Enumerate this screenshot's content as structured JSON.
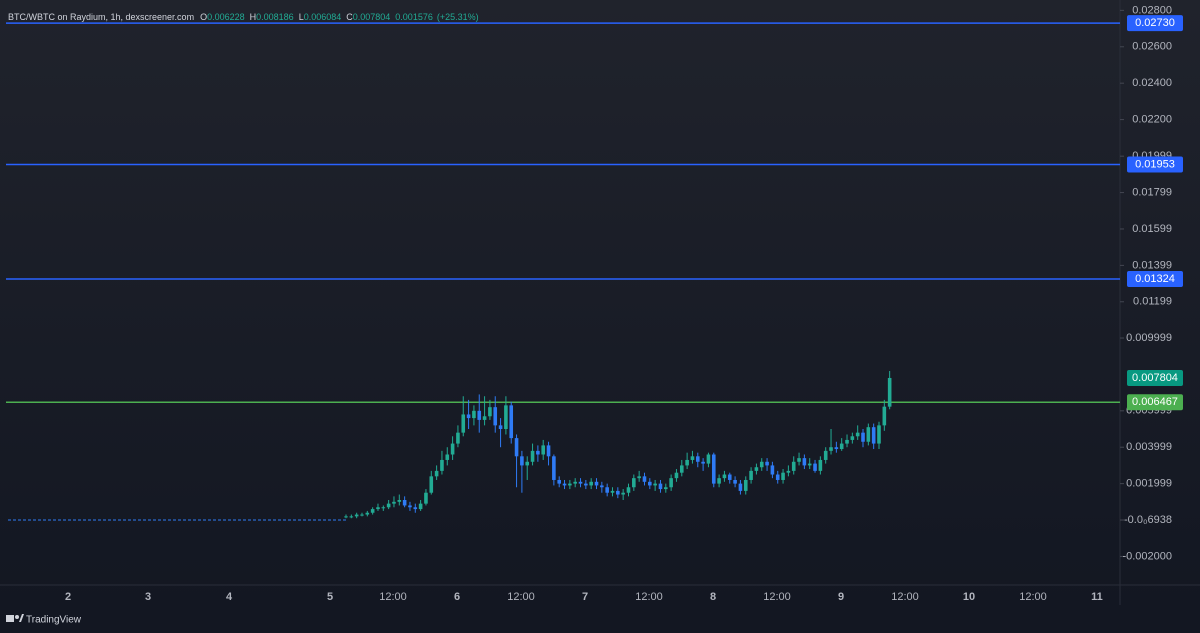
{
  "header": {
    "symbol": "BTC/WBTC on Raydium, 1h, dexscreener.com",
    "open_label": "O",
    "high_label": "H",
    "low_label": "L",
    "close_label": "C",
    "change": 0.001576,
    "change_percent": "(+25.31%)"
  },
  "footer": {
    "brand": "TradingView"
  },
  "chart_data": {
    "type": "candlestick",
    "open": [
      0.0002,
      0.0002,
      0.0002,
      0.0003,
      0.0003,
      0.0004,
      0.0006,
      0.0007,
      0.0007,
      0.0009,
      0.001,
      0.0011,
      0.0008,
      0.0007,
      0.0006,
      0.0009,
      0.0015,
      0.0024,
      0.0027,
      0.0033,
      0.0036,
      0.0042,
      0.0048,
      0.0058,
      0.0056,
      0.006,
      0.0055,
      0.0057,
      0.0062,
      0.0052,
      0.005,
      0.0063,
      0.0045,
      0.0035,
      0.003,
      0.0032,
      0.0038,
      0.0036,
      0.0041,
      0.0035,
      0.0022,
      0.002,
      0.0019,
      0.002,
      0.0021,
      0.002,
      0.0019,
      0.0021,
      0.0019,
      0.0018,
      0.0015,
      0.0016,
      0.0014,
      0.0015,
      0.0018,
      0.0023,
      0.0024,
      0.0021,
      0.0019,
      0.002,
      0.0017,
      0.0018,
      0.0023,
      0.0026,
      0.003,
      0.0033,
      0.0035,
      0.0032,
      0.0031,
      0.0036,
      0.002,
      0.0023,
      0.0025,
      0.0022,
      0.002,
      0.0016,
      0.0022,
      0.0027,
      0.0029,
      0.0032,
      0.003,
      0.0025,
      0.0022,
      0.0026,
      0.0027,
      0.0032,
      0.0034,
      0.003,
      0.0031,
      0.0027,
      0.0033,
      0.0038,
      0.004,
      0.0039,
      0.0042,
      0.0044,
      0.0046,
      0.0048,
      0.0043,
      0.0051,
      0.0042,
      0.0052,
      0.006228
    ],
    "high": [
      0.0003,
      0.0003,
      0.0004,
      0.0004,
      0.0005,
      0.0007,
      0.0009,
      0.0008,
      0.0011,
      0.0013,
      0.0014,
      0.0013,
      0.001,
      0.0009,
      0.0011,
      0.0017,
      0.0027,
      0.003,
      0.0038,
      0.004,
      0.0046,
      0.0052,
      0.0068,
      0.0066,
      0.0063,
      0.0069,
      0.0068,
      0.0066,
      0.0068,
      0.0056,
      0.0068,
      0.0065,
      0.0047,
      0.0038,
      0.0035,
      0.0042,
      0.0041,
      0.0044,
      0.0043,
      0.0036,
      0.0024,
      0.0022,
      0.0022,
      0.0023,
      0.0023,
      0.0022,
      0.0023,
      0.0023,
      0.0021,
      0.002,
      0.0018,
      0.0018,
      0.0017,
      0.002,
      0.0025,
      0.0027,
      0.0026,
      0.0023,
      0.0022,
      0.0022,
      0.002,
      0.0025,
      0.0028,
      0.0033,
      0.0037,
      0.0038,
      0.0037,
      0.0034,
      0.0037,
      0.0037,
      0.0025,
      0.0027,
      0.0026,
      0.0024,
      0.0022,
      0.0024,
      0.0029,
      0.0031,
      0.0034,
      0.0034,
      0.0032,
      0.0027,
      0.0028,
      0.003,
      0.0035,
      0.0037,
      0.0036,
      0.0034,
      0.0033,
      0.0035,
      0.004,
      0.005,
      0.0043,
      0.0045,
      0.0047,
      0.0048,
      0.0052,
      0.005,
      0.0053,
      0.0053,
      0.0054,
      0.0066,
      0.008186
    ],
    "low": [
      0.0001,
      0.0001,
      0.0001,
      0.0002,
      0.0002,
      0.0003,
      0.0005,
      0.0005,
      0.0006,
      0.0007,
      0.0008,
      0.0007,
      0.0005,
      0.0004,
      0.0005,
      0.0008,
      0.0014,
      0.0022,
      0.0025,
      0.003,
      0.0033,
      0.004,
      0.0046,
      0.005,
      0.0052,
      0.0048,
      0.0052,
      0.0055,
      0.0048,
      0.004,
      0.0047,
      0.0042,
      0.0018,
      0.0015,
      0.0022,
      0.003,
      0.0032,
      0.0033,
      0.003,
      0.0019,
      0.0018,
      0.0017,
      0.0017,
      0.0018,
      0.0018,
      0.0017,
      0.0017,
      0.0017,
      0.0015,
      0.0013,
      0.0013,
      0.0012,
      0.0011,
      0.0013,
      0.0016,
      0.0021,
      0.0019,
      0.0017,
      0.0016,
      0.0015,
      0.0015,
      0.0016,
      0.0021,
      0.0024,
      0.0028,
      0.0031,
      0.0029,
      0.0027,
      0.0029,
      0.0018,
      0.0018,
      0.0021,
      0.002,
      0.0018,
      0.0014,
      0.0014,
      0.002,
      0.0025,
      0.0027,
      0.0027,
      0.0023,
      0.002,
      0.002,
      0.0024,
      0.0025,
      0.003,
      0.0028,
      0.0028,
      0.0026,
      0.0025,
      0.0031,
      0.0036,
      0.0037,
      0.0038,
      0.004,
      0.0042,
      0.0044,
      0.004,
      0.0041,
      0.0039,
      0.0039,
      0.0049,
      0.006084
    ],
    "close": [
      0.0002,
      0.0002,
      0.0003,
      0.0003,
      0.0004,
      0.0006,
      0.0007,
      0.0007,
      0.0009,
      0.001,
      0.0011,
      0.0008,
      0.0007,
      0.0006,
      0.0009,
      0.0015,
      0.0024,
      0.0027,
      0.0033,
      0.0036,
      0.0042,
      0.0048,
      0.0058,
      0.0056,
      0.006,
      0.0055,
      0.0057,
      0.0062,
      0.0052,
      0.005,
      0.0063,
      0.0045,
      0.0035,
      0.003,
      0.0032,
      0.0038,
      0.0036,
      0.0041,
      0.0035,
      0.0022,
      0.002,
      0.0019,
      0.002,
      0.0021,
      0.002,
      0.0019,
      0.0021,
      0.0019,
      0.0018,
      0.0015,
      0.0016,
      0.0014,
      0.0015,
      0.0018,
      0.0023,
      0.0024,
      0.0021,
      0.0019,
      0.002,
      0.0017,
      0.0018,
      0.0023,
      0.0026,
      0.003,
      0.0033,
      0.0035,
      0.0032,
      0.0031,
      0.0036,
      0.002,
      0.0023,
      0.0025,
      0.0022,
      0.002,
      0.0016,
      0.0022,
      0.0027,
      0.0029,
      0.0032,
      0.003,
      0.0025,
      0.0022,
      0.0026,
      0.0027,
      0.0032,
      0.0034,
      0.003,
      0.0031,
      0.0027,
      0.0033,
      0.0038,
      0.004,
      0.0039,
      0.0042,
      0.0044,
      0.0046,
      0.0048,
      0.0043,
      0.0051,
      0.0042,
      0.0052,
      0.006228,
      0.007804
    ],
    "up_color": "#22ab94",
    "down_color": "#2f7bf5",
    "last_price_color": "#089981",
    "ylim": [
      -0.00357,
      0.02857
    ],
    "yticks": [
      {
        "value": 0.028,
        "label": "0.02800"
      },
      {
        "value": 0.026,
        "label": "0.02600"
      },
      {
        "value": 0.024,
        "label": "0.02400"
      },
      {
        "value": 0.022,
        "label": "0.02200"
      },
      0.01999,
      0.01799,
      0.01599,
      0.01399,
      0.01199,
      0.009999,
      0.005999,
      0.003999,
      0.001999,
      {
        "value": -6.938e-07,
        "label": "-0.0₀6938"
      },
      {
        "value": -0.002,
        "label": "-0.002000"
      }
    ],
    "x_labels": [
      "2",
      "3",
      "4",
      "5",
      "12:00",
      "6",
      "12:00",
      "7",
      "12:00",
      "8",
      "12:00",
      "9",
      "12:00",
      "10",
      "12:00",
      "11"
    ],
    "hlines": [
      {
        "value": 0.0273,
        "label": "0.02730",
        "color": "#2962ff"
      },
      {
        "value": 0.01953,
        "label": "0.01953",
        "color": "#2962ff"
      },
      {
        "value": 0.01324,
        "label": "0.01324",
        "color": "#2962ff"
      },
      {
        "value": 0.006467,
        "label": "0.006467",
        "color": "#4caf50"
      }
    ]
  }
}
